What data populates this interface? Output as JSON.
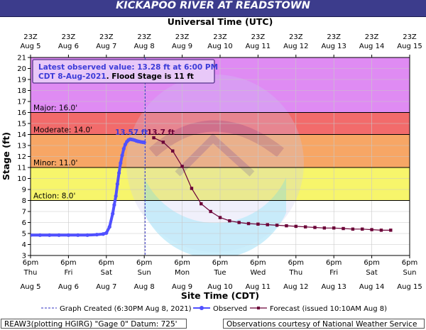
{
  "title": "KICKAPOO RIVER AT READSTOWN",
  "colors": {
    "title_bar": "#3c3c8c",
    "band_record": "#df8bf3",
    "band_major": "#f26b6b",
    "band_moderate": "#f7a665",
    "band_minor": "#f7f56b",
    "band_action": "#ffffff",
    "observed": "#5050ff",
    "forecast": "#6b0037",
    "info_text": "#3b3bd8",
    "info_border": "#55338a",
    "info_bg": "#e8c8f8"
  },
  "info_box": {
    "line1": "Latest observed value: 13.28 ft at 6:00 PM",
    "line2_a": "CDT 8-Aug-2021",
    "line2_b": ". Flood Stage is 11 ft"
  },
  "legend": {
    "graph_created": "Graph Created (6:30PM Aug 8, 2021)",
    "observed": "Observed",
    "forecast": "Forecast (issued 10:10AM Aug 8)"
  },
  "footer": {
    "left": "REAW3(plotting HGIRG) \"Gage 0\" Datum: 725'",
    "right": "Observations courtesy of National Weather Service"
  },
  "chart_data": {
    "type": "line",
    "title": "KICKAPOO RIVER AT READSTOWN",
    "xlabel_top": "Universal Time (UTC)",
    "xlabel_bottom": "Site Time (CDT)",
    "ylabel": "Stage (ft)",
    "ylim": [
      3,
      21
    ],
    "y_ticks": [
      3,
      4,
      5,
      6,
      7,
      8,
      9,
      10,
      11,
      12,
      13,
      14,
      15,
      16,
      17,
      18,
      19,
      20,
      21
    ],
    "x_range_hours": [
      0,
      240
    ],
    "top_ticks": [
      {
        "hour": 0,
        "time": "23Z",
        "date": "Aug 5"
      },
      {
        "hour": 24,
        "time": "23Z",
        "date": "Aug 6"
      },
      {
        "hour": 48,
        "time": "23Z",
        "date": "Aug 7"
      },
      {
        "hour": 72,
        "time": "23Z",
        "date": "Aug 8"
      },
      {
        "hour": 96,
        "time": "23Z",
        "date": "Aug 9"
      },
      {
        "hour": 120,
        "time": "23Z",
        "date": "Aug 10"
      },
      {
        "hour": 144,
        "time": "23Z",
        "date": "Aug 11"
      },
      {
        "hour": 168,
        "time": "23Z",
        "date": "Aug 12"
      },
      {
        "hour": 192,
        "time": "23Z",
        "date": "Aug 13"
      },
      {
        "hour": 216,
        "time": "23Z",
        "date": "Aug 14"
      },
      {
        "hour": 240,
        "time": "23Z",
        "date": "Aug 15"
      }
    ],
    "bottom_ticks": [
      {
        "hour": 0,
        "time": "6pm",
        "day": "Thu",
        "date": "Aug 5"
      },
      {
        "hour": 24,
        "time": "6pm",
        "day": "Fri",
        "date": "Aug 6"
      },
      {
        "hour": 48,
        "time": "6pm",
        "day": "Sat",
        "date": "Aug 7"
      },
      {
        "hour": 72,
        "time": "6pm",
        "day": "Sun",
        "date": "Aug 8"
      },
      {
        "hour": 96,
        "time": "6pm",
        "day": "Mon",
        "date": "Aug 9"
      },
      {
        "hour": 120,
        "time": "6pm",
        "day": "Tue",
        "date": "Aug 10"
      },
      {
        "hour": 144,
        "time": "6pm",
        "day": "Wed",
        "date": "Aug 11"
      },
      {
        "hour": 168,
        "time": "6pm",
        "day": "Thu",
        "date": "Aug 12"
      },
      {
        "hour": 192,
        "time": "6pm",
        "day": "Fri",
        "date": "Aug 13"
      },
      {
        "hour": 216,
        "time": "6pm",
        "day": "Sat",
        "date": "Aug 14"
      },
      {
        "hour": 240,
        "time": "6pm",
        "day": "Sun",
        "date": "Aug 15"
      }
    ],
    "flood_categories": [
      {
        "name": "Major",
        "label": "Major: 16.0'",
        "value": 16.0
      },
      {
        "name": "Moderate",
        "label": "Moderate: 14.0'",
        "value": 14.0
      },
      {
        "name": "Minor",
        "label": "Minor: 11.0'",
        "value": 11.0
      },
      {
        "name": "Action",
        "label": "Action: 8.0'",
        "value": 8.0
      }
    ],
    "graph_created_hour": 72.5,
    "series": [
      {
        "name": "Observed",
        "x_hours": [
          0,
          6,
          12,
          18,
          24,
          30,
          36,
          42,
          46,
          48,
          50,
          52,
          53,
          54,
          55,
          56,
          57,
          58,
          59,
          60,
          61,
          62,
          63,
          64,
          65,
          66,
          67,
          68,
          69,
          70,
          71,
          72
        ],
        "y": [
          4.85,
          4.85,
          4.85,
          4.85,
          4.85,
          4.85,
          4.85,
          4.9,
          4.95,
          5.05,
          5.6,
          6.8,
          7.6,
          8.4,
          9.5,
          10.5,
          11.4,
          12.1,
          12.7,
          13.1,
          13.35,
          13.5,
          13.57,
          13.55,
          13.52,
          13.48,
          13.42,
          13.38,
          13.35,
          13.32,
          13.3,
          13.28
        ]
      },
      {
        "name": "Forecast (issued 10:10AM Aug 8)",
        "x_hours": [
          78,
          84,
          90,
          96,
          102,
          108,
          114,
          120,
          126,
          132,
          138,
          144,
          150,
          156,
          162,
          168,
          174,
          180,
          186,
          192,
          198,
          204,
          210,
          216,
          222,
          228
        ],
        "y": [
          13.7,
          13.3,
          12.5,
          11.1,
          9.1,
          7.7,
          7.0,
          6.45,
          6.15,
          6.0,
          5.9,
          5.85,
          5.8,
          5.75,
          5.7,
          5.65,
          5.6,
          5.55,
          5.5,
          5.5,
          5.45,
          5.4,
          5.4,
          5.35,
          5.3,
          5.3
        ]
      }
    ],
    "annotations": [
      {
        "text": "13.57 ft",
        "hour": 63,
        "value": 13.57
      },
      {
        "text": "13.7 ft",
        "hour": 78,
        "value": 13.7
      }
    ]
  }
}
